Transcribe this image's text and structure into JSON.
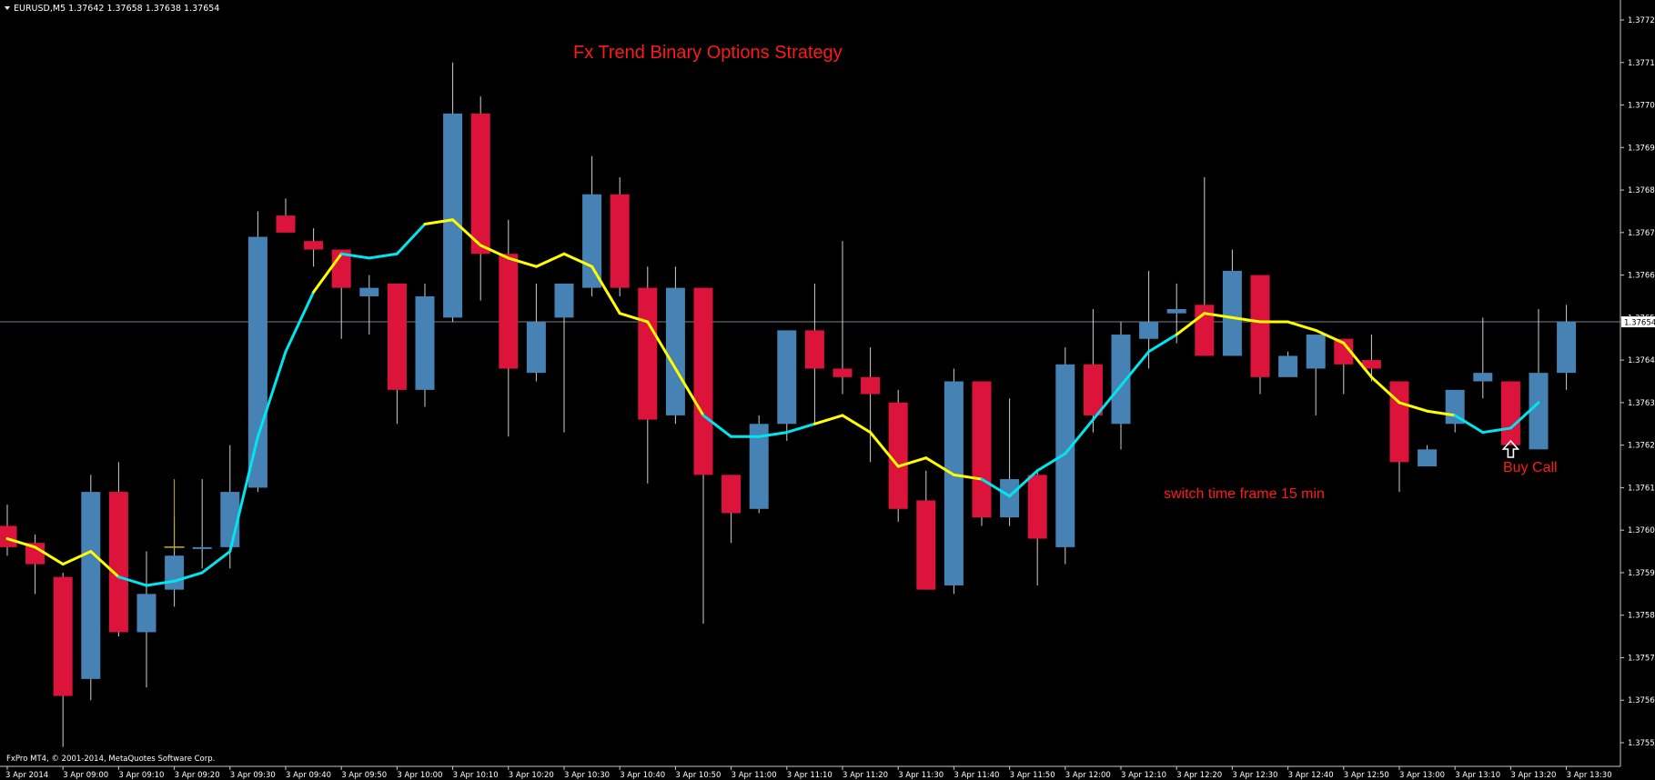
{
  "header": {
    "symbol_line": "EURUSD,M5  1.37642 1.37658 1.37638 1.37654"
  },
  "footer": {
    "copyright": "FxPro MT4, © 2001-2014, MetaQuotes Software Corp."
  },
  "annotations": {
    "title": "Fx Trend Binary Options Strategy",
    "switch_note": "switch time frame 15 min",
    "buy_label": "Buy Call"
  },
  "colors": {
    "background": "#000000",
    "axis": "#c8c8c8",
    "bull_candle": "#4682b4",
    "bear_candle": "#dc143c",
    "wick": "#d0d0d0",
    "ma_up": "#00e5ee",
    "ma_down": "#ffff00",
    "text_red": "#ff1a1a",
    "price_line": "#a0a8b8",
    "text_white": "#ffffff"
  },
  "chart_data": {
    "type": "candlestick",
    "symbol": "EURUSD",
    "timeframe": "M5",
    "ylim": [
      1.37547,
      1.37729
    ],
    "y_ticks": [
      "1.37725",
      "1.37715",
      "1.37705",
      "1.37695",
      "1.37685",
      "1.37675",
      "1.37665",
      "1.37655",
      "1.37645",
      "1.37635",
      "1.37625",
      "1.37615",
      "1.37605",
      "1.37595",
      "1.37585",
      "1.37575",
      "1.37565",
      "1.37555"
    ],
    "current_price": "1.37654",
    "x_ticks": [
      {
        "i": 0,
        "label": "3 Apr 2014"
      },
      {
        "i": 2,
        "label": "3 Apr 09:00"
      },
      {
        "i": 4,
        "label": "3 Apr 09:10"
      },
      {
        "i": 6,
        "label": "3 Apr 09:20"
      },
      {
        "i": 8,
        "label": "3 Apr 09:30"
      },
      {
        "i": 10,
        "label": "3 Apr 09:40"
      },
      {
        "i": 12,
        "label": "3 Apr 09:50"
      },
      {
        "i": 14,
        "label": "3 Apr 10:00"
      },
      {
        "i": 16,
        "label": "3 Apr 10:10"
      },
      {
        "i": 18,
        "label": "3 Apr 10:20"
      },
      {
        "i": 20,
        "label": "3 Apr 10:30"
      },
      {
        "i": 22,
        "label": "3 Apr 10:40"
      },
      {
        "i": 24,
        "label": "3 Apr 10:50"
      },
      {
        "i": 26,
        "label": "3 Apr 11:00"
      },
      {
        "i": 28,
        "label": "3 Apr 11:10"
      },
      {
        "i": 30,
        "label": "3 Apr 11:20"
      },
      {
        "i": 32,
        "label": "3 Apr 11:30"
      },
      {
        "i": 34,
        "label": "3 Apr 11:40"
      },
      {
        "i": 36,
        "label": "3 Apr 11:50"
      },
      {
        "i": 38,
        "label": "3 Apr 12:00"
      },
      {
        "i": 40,
        "label": "3 Apr 12:10"
      },
      {
        "i": 42,
        "label": "3 Apr 12:20"
      },
      {
        "i": 44,
        "label": "3 Apr 12:30"
      },
      {
        "i": 46,
        "label": "3 Apr 12:40"
      },
      {
        "i": 48,
        "label": "3 Apr 12:50"
      },
      {
        "i": 50,
        "label": "3 Apr 13:00"
      },
      {
        "i": 52,
        "label": "3 Apr 13:10"
      },
      {
        "i": 54,
        "label": "3 Apr 13:20"
      },
      {
        "i": 56,
        "label": "3 Apr 13:30"
      }
    ],
    "candles": [
      {
        "o": 1.37606,
        "h": 1.37611,
        "l": 1.37599,
        "c": 1.37601
      },
      {
        "o": 1.37602,
        "h": 1.37604,
        "l": 1.3759,
        "c": 1.37597
      },
      {
        "o": 1.37594,
        "h": 1.37595,
        "l": 1.37554,
        "c": 1.37566
      },
      {
        "o": 1.3757,
        "h": 1.37618,
        "l": 1.37565,
        "c": 1.37614
      },
      {
        "o": 1.37614,
        "h": 1.37621,
        "l": 1.3758,
        "c": 1.37581
      },
      {
        "o": 1.37581,
        "h": 1.376,
        "l": 1.37568,
        "c": 1.3759
      },
      {
        "o": 1.37591,
        "h": 1.37608,
        "l": 1.37587,
        "c": 1.37599
      },
      {
        "o": 1.37601,
        "h": 1.37617,
        "l": 1.37596,
        "c": 1.37601
      },
      {
        "o": 1.37601,
        "h": 1.37625,
        "l": 1.37596,
        "c": 1.37614
      },
      {
        "o": 1.37615,
        "h": 1.3768,
        "l": 1.37614,
        "c": 1.37674
      },
      {
        "o": 1.37679,
        "h": 1.37683,
        "l": 1.37675,
        "c": 1.37675
      },
      {
        "o": 1.37673,
        "h": 1.37676,
        "l": 1.37667,
        "c": 1.37671
      },
      {
        "o": 1.37671,
        "h": 1.37671,
        "l": 1.3765,
        "c": 1.37662
      },
      {
        "o": 1.3766,
        "h": 1.37665,
        "l": 1.37651,
        "c": 1.37662
      },
      {
        "o": 1.37663,
        "h": 1.37663,
        "l": 1.3763,
        "c": 1.37638
      },
      {
        "o": 1.37638,
        "h": 1.37663,
        "l": 1.37634,
        "c": 1.3766
      },
      {
        "o": 1.37655,
        "h": 1.37715,
        "l": 1.37654,
        "c": 1.37703
      },
      {
        "o": 1.37703,
        "h": 1.37707,
        "l": 1.37659,
        "c": 1.3767
      },
      {
        "o": 1.3767,
        "h": 1.37678,
        "l": 1.37627,
        "c": 1.37643
      },
      {
        "o": 1.37642,
        "h": 1.37663,
        "l": 1.3764,
        "c": 1.37654
      },
      {
        "o": 1.37655,
        "h": 1.37663,
        "l": 1.37628,
        "c": 1.37663
      },
      {
        "o": 1.37662,
        "h": 1.37693,
        "l": 1.3766,
        "c": 1.37684
      },
      {
        "o": 1.37684,
        "h": 1.37688,
        "l": 1.3766,
        "c": 1.37662
      },
      {
        "o": 1.37662,
        "h": 1.37667,
        "l": 1.37616,
        "c": 1.37631
      },
      {
        "o": 1.37632,
        "h": 1.37667,
        "l": 1.3763,
        "c": 1.37662
      },
      {
        "o": 1.37662,
        "h": 1.37662,
        "l": 1.37583,
        "c": 1.37618
      },
      {
        "o": 1.37618,
        "h": 1.37618,
        "l": 1.37602,
        "c": 1.37609
      },
      {
        "o": 1.3761,
        "h": 1.37632,
        "l": 1.37609,
        "c": 1.3763
      },
      {
        "o": 1.3763,
        "h": 1.37652,
        "l": 1.37626,
        "c": 1.37652
      },
      {
        "o": 1.37652,
        "h": 1.37663,
        "l": 1.3763,
        "c": 1.37643
      },
      {
        "o": 1.37643,
        "h": 1.37673,
        "l": 1.37637,
        "c": 1.37641
      },
      {
        "o": 1.37641,
        "h": 1.37648,
        "l": 1.37621,
        "c": 1.37637
      },
      {
        "o": 1.37635,
        "h": 1.37638,
        "l": 1.37607,
        "c": 1.3761
      },
      {
        "o": 1.37612,
        "h": 1.37619,
        "l": 1.37591,
        "c": 1.37591
      },
      {
        "o": 1.37592,
        "h": 1.37643,
        "l": 1.3759,
        "c": 1.3764
      },
      {
        "o": 1.3764,
        "h": 1.3764,
        "l": 1.37606,
        "c": 1.37608
      },
      {
        "o": 1.37608,
        "h": 1.37636,
        "l": 1.37606,
        "c": 1.37617
      },
      {
        "o": 1.37618,
        "h": 1.37619,
        "l": 1.37592,
        "c": 1.37603
      },
      {
        "o": 1.37601,
        "h": 1.37648,
        "l": 1.37597,
        "c": 1.37644
      },
      {
        "o": 1.37644,
        "h": 1.37657,
        "l": 1.37628,
        "c": 1.37632
      },
      {
        "o": 1.3763,
        "h": 1.37654,
        "l": 1.37624,
        "c": 1.37651
      },
      {
        "o": 1.3765,
        "h": 1.37666,
        "l": 1.37643,
        "c": 1.37654
      },
      {
        "o": 1.37656,
        "h": 1.37663,
        "l": 1.37649,
        "c": 1.37657
      },
      {
        "o": 1.37658,
        "h": 1.37688,
        "l": 1.37646,
        "c": 1.37646
      },
      {
        "o": 1.37646,
        "h": 1.37671,
        "l": 1.37646,
        "c": 1.37666
      },
      {
        "o": 1.37665,
        "h": 1.37665,
        "l": 1.37637,
        "c": 1.37641
      },
      {
        "o": 1.37641,
        "h": 1.37647,
        "l": 1.37641,
        "c": 1.37646
      },
      {
        "o": 1.37643,
        "h": 1.37651,
        "l": 1.37632,
        "c": 1.37651
      },
      {
        "o": 1.3765,
        "h": 1.3765,
        "l": 1.37637,
        "c": 1.37644
      },
      {
        "o": 1.37645,
        "h": 1.37651,
        "l": 1.3764,
        "c": 1.37643
      },
      {
        "o": 1.3764,
        "h": 1.3764,
        "l": 1.37614,
        "c": 1.37621
      },
      {
        "o": 1.3762,
        "h": 1.37625,
        "l": 1.3762,
        "c": 1.37624
      },
      {
        "o": 1.3763,
        "h": 1.37637,
        "l": 1.37628,
        "c": 1.37638
      },
      {
        "o": 1.3764,
        "h": 1.37655,
        "l": 1.37636,
        "c": 1.37642
      },
      {
        "o": 1.3764,
        "h": 1.3764,
        "l": 1.37625,
        "c": 1.37625
      },
      {
        "o": 1.37624,
        "h": 1.37657,
        "l": 1.37624,
        "c": 1.37642
      },
      {
        "o": 1.37642,
        "h": 1.37658,
        "l": 1.37638,
        "c": 1.37654
      }
    ],
    "ma_series": [
      {
        "i": 0,
        "v": 1.37603,
        "trend": "down"
      },
      {
        "i": 1,
        "v": 1.37601,
        "trend": "down"
      },
      {
        "i": 2,
        "v": 1.37597,
        "trend": "down"
      },
      {
        "i": 3,
        "v": 1.376,
        "trend": "down"
      },
      {
        "i": 4,
        "v": 1.37594,
        "trend": "down"
      },
      {
        "i": 5,
        "v": 1.37592,
        "trend": "up"
      },
      {
        "i": 6,
        "v": 1.37593,
        "trend": "up"
      },
      {
        "i": 7,
        "v": 1.37595,
        "trend": "up"
      },
      {
        "i": 8,
        "v": 1.376,
        "trend": "up"
      },
      {
        "i": 9,
        "v": 1.37627,
        "trend": "up"
      },
      {
        "i": 10,
        "v": 1.37647,
        "trend": "up"
      },
      {
        "i": 11,
        "v": 1.37661,
        "trend": "up"
      },
      {
        "i": 12,
        "v": 1.3767,
        "trend": "down"
      },
      {
        "i": 13,
        "v": 1.37669,
        "trend": "up"
      },
      {
        "i": 14,
        "v": 1.3767,
        "trend": "up"
      },
      {
        "i": 15,
        "v": 1.37677,
        "trend": "up"
      },
      {
        "i": 16,
        "v": 1.37678,
        "trend": "down"
      },
      {
        "i": 17,
        "v": 1.37672,
        "trend": "down"
      },
      {
        "i": 18,
        "v": 1.37669,
        "trend": "down"
      },
      {
        "i": 19,
        "v": 1.37667,
        "trend": "down"
      },
      {
        "i": 20,
        "v": 1.3767,
        "trend": "down"
      },
      {
        "i": 21,
        "v": 1.37667,
        "trend": "down"
      },
      {
        "i": 22,
        "v": 1.37656,
        "trend": "down"
      },
      {
        "i": 23,
        "v": 1.37654,
        "trend": "down"
      },
      {
        "i": 24,
        "v": 1.37643,
        "trend": "down"
      },
      {
        "i": 25,
        "v": 1.37632,
        "trend": "down"
      },
      {
        "i": 26,
        "v": 1.37627,
        "trend": "up"
      },
      {
        "i": 27,
        "v": 1.37627,
        "trend": "up"
      },
      {
        "i": 28,
        "v": 1.37628,
        "trend": "up"
      },
      {
        "i": 29,
        "v": 1.3763,
        "trend": "up"
      },
      {
        "i": 30,
        "v": 1.37632,
        "trend": "down"
      },
      {
        "i": 31,
        "v": 1.37628,
        "trend": "down"
      },
      {
        "i": 32,
        "v": 1.3762,
        "trend": "down"
      },
      {
        "i": 33,
        "v": 1.37622,
        "trend": "down"
      },
      {
        "i": 34,
        "v": 1.37618,
        "trend": "down"
      },
      {
        "i": 35,
        "v": 1.37617,
        "trend": "down"
      },
      {
        "i": 36,
        "v": 1.37613,
        "trend": "up"
      },
      {
        "i": 37,
        "v": 1.37619,
        "trend": "up"
      },
      {
        "i": 38,
        "v": 1.37623,
        "trend": "up"
      },
      {
        "i": 39,
        "v": 1.37631,
        "trend": "up"
      },
      {
        "i": 40,
        "v": 1.37639,
        "trend": "up"
      },
      {
        "i": 41,
        "v": 1.37647,
        "trend": "up"
      },
      {
        "i": 42,
        "v": 1.37651,
        "trend": "up"
      },
      {
        "i": 43,
        "v": 1.37656,
        "trend": "down"
      },
      {
        "i": 44,
        "v": 1.37655,
        "trend": "down"
      },
      {
        "i": 45,
        "v": 1.37654,
        "trend": "down"
      },
      {
        "i": 46,
        "v": 1.37654,
        "trend": "down"
      },
      {
        "i": 47,
        "v": 1.37652,
        "trend": "down"
      },
      {
        "i": 48,
        "v": 1.37649,
        "trend": "down"
      },
      {
        "i": 49,
        "v": 1.37641,
        "trend": "down"
      },
      {
        "i": 50,
        "v": 1.37635,
        "trend": "down"
      },
      {
        "i": 51,
        "v": 1.37633,
        "trend": "down"
      },
      {
        "i": 52,
        "v": 1.37632,
        "trend": "down"
      },
      {
        "i": 53,
        "v": 1.37628,
        "trend": "up"
      },
      {
        "i": 54,
        "v": 1.37629,
        "trend": "up"
      },
      {
        "i": 55,
        "v": 1.37635,
        "trend": "up"
      }
    ],
    "stray_mark": {
      "i": 6,
      "o": 1.37601,
      "h": 1.37617,
      "l": 1.376,
      "c": 1.37601
    },
    "buy_signal_index": 54
  }
}
